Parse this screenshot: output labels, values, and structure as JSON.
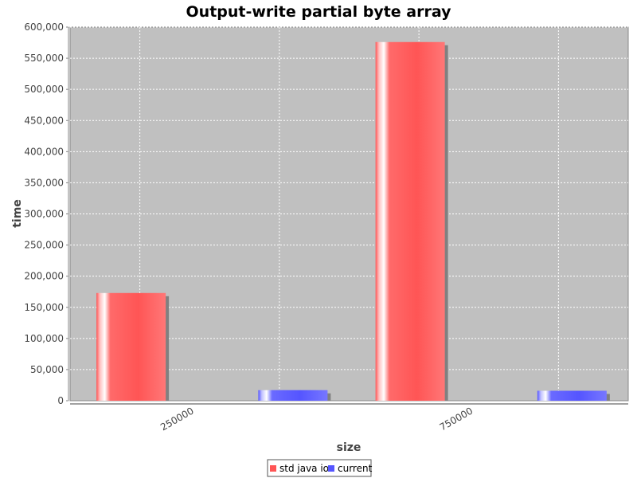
{
  "chart_data": {
    "type": "bar",
    "title": "Output-write partial byte array",
    "xlabel": "size",
    "ylabel": "time",
    "categories": [
      "250000",
      "750000"
    ],
    "series": [
      {
        "name": "std java io",
        "values": [
          173000,
          576000
        ],
        "color": "#ff5555"
      },
      {
        "name": "current",
        "values": [
          17000,
          16000
        ],
        "color": "#5555ff"
      }
    ],
    "ylim": [
      0,
      600000
    ],
    "yticks": [
      0,
      50000,
      100000,
      150000,
      200000,
      250000,
      300000,
      350000,
      400000,
      450000,
      500000,
      550000,
      600000
    ],
    "ytick_labels": [
      "0",
      "50,000",
      "100,000",
      "150,000",
      "200,000",
      "250,000",
      "300,000",
      "350,000",
      "400,000",
      "450,000",
      "500,000",
      "550,000",
      "600,000"
    ],
    "grid": true,
    "legend_position": "bottom",
    "plot_background": "#c0c0c0"
  }
}
